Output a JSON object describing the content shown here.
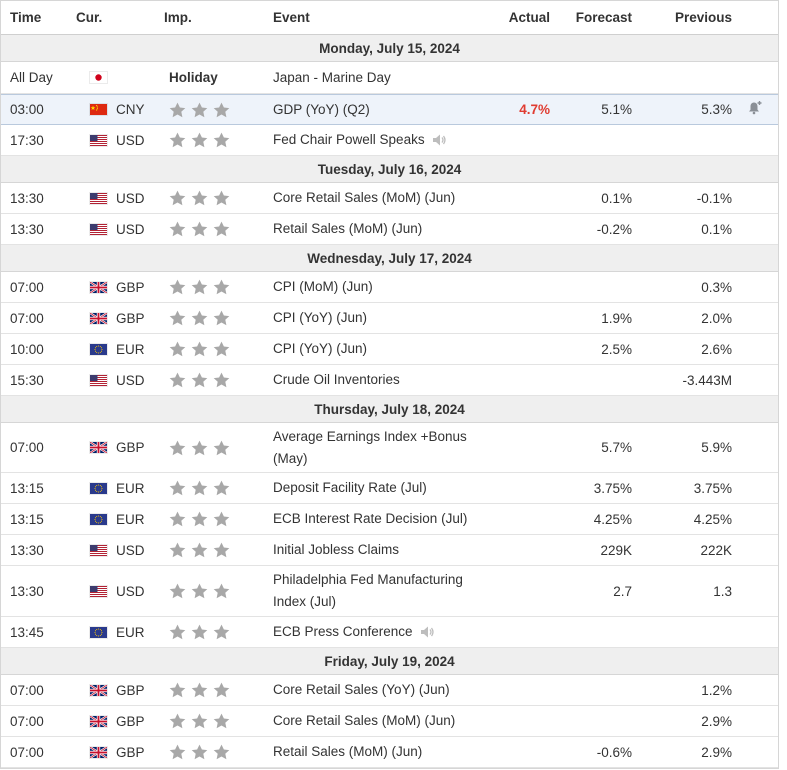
{
  "header": {
    "time": "Time",
    "currency": "Cur.",
    "importance": "Imp.",
    "event": "Event",
    "actual": "Actual",
    "forecast": "Forecast",
    "previous": "Previous"
  },
  "colors": {
    "star": "#a8a8a8",
    "actual_red": "#e03c31",
    "date_bg": "#efefef",
    "highlight_bg": "#eef3fa"
  },
  "days": [
    {
      "date": "Monday, July 15, 2024",
      "events": [
        {
          "time": "All Day",
          "flag": "JP",
          "currency": "",
          "holiday": "Holiday",
          "event": "Japan - Marine Day",
          "actual": "",
          "forecast": "",
          "previous": "",
          "stars": 0,
          "height": 32
        },
        {
          "time": "03:00",
          "flag": "CN",
          "currency": "CNY",
          "event": "GDP (YoY) (Q2)",
          "actual": "4.7%",
          "actual_style": "red",
          "forecast": "5.1%",
          "previous": "5.3%",
          "stars": 3,
          "highlight": true,
          "alert_icon": "bell-plus-icon",
          "height": 31
        },
        {
          "time": "17:30",
          "flag": "US",
          "currency": "USD",
          "event": "Fed Chair Powell Speaks",
          "speaker_icon": "speaker-icon",
          "actual": "",
          "forecast": "",
          "previous": "",
          "stars": 3,
          "height": 31
        }
      ]
    },
    {
      "date": "Tuesday, July 16, 2024",
      "events": [
        {
          "time": "13:30",
          "flag": "US",
          "currency": "USD",
          "event": "Core Retail Sales (MoM) (Jun)",
          "actual": "",
          "forecast": "0.1%",
          "previous": "-0.1%",
          "stars": 3,
          "height": 31
        },
        {
          "time": "13:30",
          "flag": "US",
          "currency": "USD",
          "event": "Retail Sales (MoM) (Jun)",
          "actual": "",
          "forecast": "-0.2%",
          "previous": "0.1%",
          "stars": 3,
          "height": 31
        }
      ]
    },
    {
      "date": "Wednesday, July 17, 2024",
      "events": [
        {
          "time": "07:00",
          "flag": "GB",
          "currency": "GBP",
          "event": "CPI (MoM) (Jun)",
          "actual": "",
          "forecast": "",
          "previous": "0.3%",
          "stars": 3,
          "height": 31
        },
        {
          "time": "07:00",
          "flag": "GB",
          "currency": "GBP",
          "event": "CPI (YoY) (Jun)",
          "actual": "",
          "forecast": "1.9%",
          "previous": "2.0%",
          "stars": 3,
          "height": 31
        },
        {
          "time": "10:00",
          "flag": "EU",
          "currency": "EUR",
          "event": "CPI (YoY) (Jun)",
          "actual": "",
          "forecast": "2.5%",
          "previous": "2.6%",
          "stars": 3,
          "height": 31
        },
        {
          "time": "15:30",
          "flag": "US",
          "currency": "USD",
          "event": "Crude Oil Inventories",
          "actual": "",
          "forecast": "",
          "previous": "-3.443M",
          "stars": 3,
          "height": 31
        }
      ]
    },
    {
      "date": "Thursday, July 18, 2024",
      "events": [
        {
          "time": "07:00",
          "flag": "GB",
          "currency": "GBP",
          "event": "Average Earnings Index +Bonus (May)",
          "actual": "",
          "forecast": "5.7%",
          "previous": "5.9%",
          "stars": 3,
          "height": 50
        },
        {
          "time": "13:15",
          "flag": "EU",
          "currency": "EUR",
          "event": "Deposit Facility Rate (Jul)",
          "actual": "",
          "forecast": "3.75%",
          "previous": "3.75%",
          "stars": 3,
          "height": 31
        },
        {
          "time": "13:15",
          "flag": "EU",
          "currency": "EUR",
          "event": "ECB Interest Rate Decision (Jul)",
          "actual": "",
          "forecast": "4.25%",
          "previous": "4.25%",
          "stars": 3,
          "height": 31
        },
        {
          "time": "13:30",
          "flag": "US",
          "currency": "USD",
          "event": "Initial Jobless Claims",
          "actual": "",
          "forecast": "229K",
          "previous": "222K",
          "stars": 3,
          "height": 31
        },
        {
          "time": "13:30",
          "flag": "US",
          "currency": "USD",
          "event": "Philadelphia Fed Manufacturing Index (Jul)",
          "actual": "",
          "forecast": "2.7",
          "previous": "1.3",
          "stars": 3,
          "height": 51
        },
        {
          "time": "13:45",
          "flag": "EU",
          "currency": "EUR",
          "event": "ECB Press Conference",
          "speaker_icon": "speaker-icon",
          "actual": "",
          "forecast": "",
          "previous": "",
          "stars": 3,
          "height": 31
        }
      ]
    },
    {
      "date": "Friday, July 19, 2024",
      "events": [
        {
          "time": "07:00",
          "flag": "GB",
          "currency": "GBP",
          "event": "Core Retail Sales (YoY) (Jun)",
          "actual": "",
          "forecast": "",
          "previous": "1.2%",
          "stars": 3,
          "height": 31
        },
        {
          "time": "07:00",
          "flag": "GB",
          "currency": "GBP",
          "event": "Core Retail Sales (MoM) (Jun)",
          "actual": "",
          "forecast": "",
          "previous": "2.9%",
          "stars": 3,
          "height": 31
        },
        {
          "time": "07:00",
          "flag": "GB",
          "currency": "GBP",
          "event": "Retail Sales (MoM) (Jun)",
          "actual": "",
          "forecast": "-0.6%",
          "previous": "2.9%",
          "stars": 3,
          "height": 31
        }
      ]
    }
  ]
}
